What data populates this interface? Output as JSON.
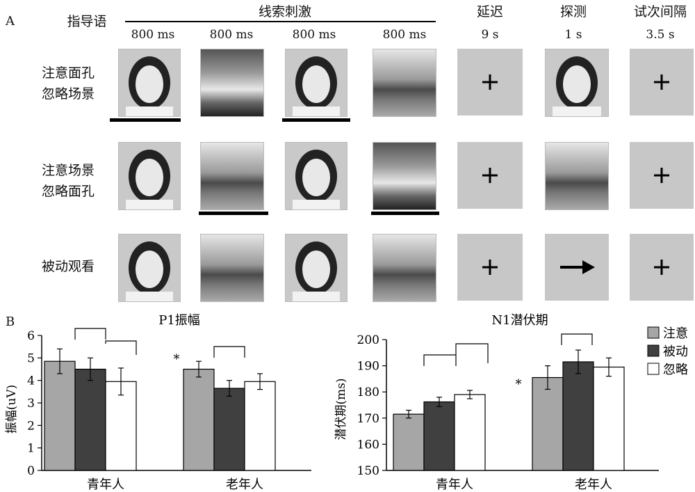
{
  "panel_a": {
    "letter": "A",
    "header_instruction": "指导语",
    "header_cue": "线索刺激",
    "header_delay": "延迟",
    "header_probe": "探测",
    "header_iti": "试次间隔",
    "durations": [
      "800 ms",
      "800 ms",
      "800 ms",
      "800 ms",
      "9 s",
      "1 s",
      "3.5 s"
    ],
    "rows": [
      {
        "label_line1": "注意面孔",
        "label_line2": "忽略场景"
      },
      {
        "label_line1": "注意场景",
        "label_line2": "忽略面孔"
      },
      {
        "label_line1": "被动观看",
        "label_line2": ""
      }
    ],
    "fixation_symbol": "+"
  },
  "panel_b": {
    "letter": "B",
    "legend": [
      "注意",
      "被动",
      "忽略"
    ],
    "significance_mark": "*"
  },
  "chart_data": [
    {
      "type": "bar",
      "title": "P1振幅",
      "ylabel": "振幅(uV)",
      "xlabel": "",
      "categories": [
        "青年人",
        "老年人"
      ],
      "ylim": [
        0,
        6
      ],
      "yticks": [
        "0",
        "1",
        "2",
        "3",
        "4",
        "5",
        "6"
      ],
      "series": [
        {
          "name": "注意",
          "values": [
            4.85,
            4.5
          ],
          "errors": [
            0.55,
            0.35
          ],
          "color": "#a6a6a6"
        },
        {
          "name": "被动",
          "values": [
            4.5,
            3.65
          ],
          "errors": [
            0.5,
            0.35
          ],
          "color": "#404040"
        },
        {
          "name": "忽略",
          "values": [
            3.95,
            3.95
          ],
          "errors": [
            0.6,
            0.35
          ],
          "color": "#ffffff"
        }
      ]
    },
    {
      "type": "bar",
      "title": "N1潜伏期",
      "ylabel": "潜伏期(ms)",
      "xlabel": "",
      "categories": [
        "青年人",
        "老年人"
      ],
      "ylim": [
        150,
        200
      ],
      "yticks": [
        "150",
        "160",
        "170",
        "180",
        "190",
        "200"
      ],
      "series": [
        {
          "name": "注意",
          "values": [
            171.5,
            185.5
          ],
          "errors": [
            1.5,
            4.5
          ],
          "color": "#a6a6a6"
        },
        {
          "name": "被动",
          "values": [
            176.2,
            191.5
          ],
          "errors": [
            1.8,
            4.5
          ],
          "color": "#404040"
        },
        {
          "name": "忽略",
          "values": [
            179.0,
            189.5
          ],
          "errors": [
            1.6,
            3.5
          ],
          "color": "#ffffff"
        }
      ]
    }
  ]
}
